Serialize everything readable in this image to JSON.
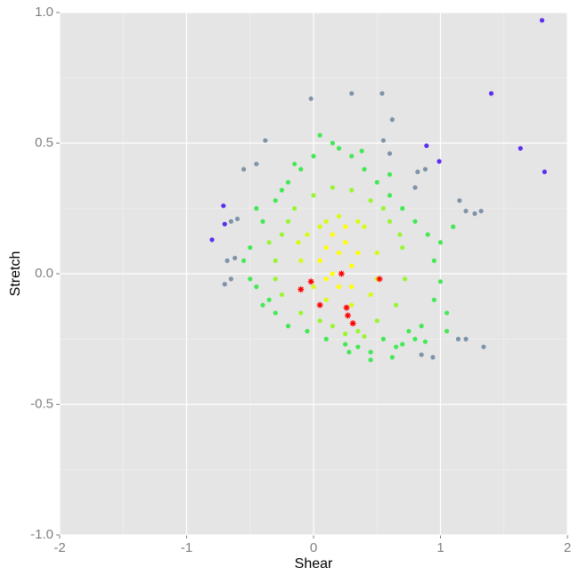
{
  "chart_data": {
    "type": "scatter",
    "x_label": "Shear",
    "y_label": "Stretch",
    "xlim": [
      -2,
      2
    ],
    "ylim": [
      -1,
      1
    ],
    "xticks": [
      -2,
      -1,
      0,
      1,
      2
    ],
    "yticks": [
      {
        "value": -1,
        "label": "-1.0"
      },
      {
        "value": -0.5,
        "label": "-0.5"
      },
      {
        "value": 0,
        "label": "0.0"
      },
      {
        "value": 0.5,
        "label": "0.5"
      },
      {
        "value": 1,
        "label": "1.0"
      }
    ],
    "grid": true,
    "minor_grid": true,
    "panel_color": "#e5e5e5",
    "series": [
      {
        "color": "#7f93a8",
        "marker": "dot",
        "x": [
          -0.02,
          0.3,
          0.54,
          0.62,
          -0.38,
          0.55,
          0.6,
          -0.55,
          -0.45,
          0.82,
          0.88,
          0.8,
          1.15,
          1.2,
          1.27,
          1.32,
          -0.6,
          -0.65,
          -0.68,
          -0.62,
          -0.65,
          -0.7,
          1.34,
          0.94,
          1.14,
          1.2,
          0.85
        ],
        "values": [
          0.67,
          0.69,
          0.69,
          0.59,
          0.51,
          0.51,
          0.46,
          0.4,
          0.42,
          0.39,
          0.4,
          0.33,
          0.28,
          0.24,
          0.23,
          0.24,
          0.21,
          0.2,
          0.05,
          0.06,
          -0.02,
          -0.04,
          -0.28,
          -0.32,
          -0.25,
          -0.25,
          -0.31
        ]
      },
      {
        "color": "#5b2ef0",
        "marker": "dot",
        "x": [
          1.8,
          1.4,
          1.63,
          1.82,
          -0.8,
          -0.71,
          0.89,
          0.99,
          -0.7
        ],
        "values": [
          0.97,
          0.69,
          0.48,
          0.39,
          0.13,
          0.26,
          0.49,
          0.43,
          0.19
        ]
      },
      {
        "color": "#44e855",
        "marker": "dot",
        "x": [
          -0.5,
          -0.45,
          -0.4,
          -0.35,
          -0.3,
          -0.3,
          -0.2,
          -0.2,
          -0.1,
          -0.05,
          0.0,
          0.05,
          0.1,
          0.2,
          0.25,
          0.3,
          0.35,
          0.4,
          0.45,
          0.5,
          0.55,
          0.6,
          0.65,
          0.7,
          0.75,
          0.8,
          0.85,
          0.9,
          0.95,
          0.95,
          1.0,
          1.05,
          1.0,
          0.45,
          -0.45,
          -0.5,
          -0.25,
          0.15,
          0.7,
          0.88,
          1.1,
          -0.4,
          0.28,
          0.6,
          -0.15,
          0.8,
          1.05,
          0.62,
          -0.55,
          0.38
        ],
        "values": [
          0.1,
          -0.05,
          0.2,
          -0.1,
          0.28,
          -0.15,
          0.35,
          -0.2,
          0.4,
          -0.22,
          0.45,
          0.53,
          -0.25,
          0.48,
          -0.27,
          0.45,
          -0.28,
          0.4,
          -0.3,
          0.35,
          -0.25,
          0.3,
          -0.28,
          0.25,
          -0.22,
          0.2,
          -0.2,
          0.15,
          0.05,
          -0.1,
          -0.03,
          -0.15,
          0.12,
          -0.33,
          0.25,
          -0.02,
          0.32,
          0.5,
          -0.27,
          -0.26,
          0.18,
          -0.12,
          -0.3,
          0.38,
          0.42,
          -0.25,
          -0.22,
          -0.32,
          0.05,
          0.47
        ]
      },
      {
        "color": "#99f533",
        "marker": "dot",
        "x": [
          -0.3,
          -0.25,
          -0.25,
          -0.15,
          -0.1,
          0.0,
          0.05,
          0.15,
          0.15,
          0.3,
          0.35,
          0.45,
          0.5,
          0.6,
          0.65,
          0.7,
          0.72,
          -0.35,
          0.55,
          0.4,
          -0.2,
          0.25,
          0.68,
          -0.3
        ],
        "values": [
          0.05,
          0.15,
          -0.08,
          0.25,
          -0.15,
          0.3,
          -0.18,
          0.33,
          -0.2,
          0.32,
          -0.22,
          0.28,
          -0.18,
          0.2,
          -0.12,
          0.1,
          -0.02,
          0.12,
          0.25,
          -0.24,
          0.2,
          -0.23,
          0.15,
          -0.02
        ]
      },
      {
        "color": "#d8fa14",
        "marker": "dot",
        "x": [
          -0.1,
          -0.05,
          0.0,
          0.1,
          0.1,
          0.2,
          0.3,
          0.4,
          0.45,
          0.5,
          -0.12,
          0.35,
          0.5,
          0.05
        ],
        "values": [
          0.05,
          0.15,
          -0.05,
          0.2,
          -0.1,
          0.22,
          -0.12,
          0.18,
          -0.08,
          0.08,
          0.12,
          0.2,
          -0.02,
          0.18
        ]
      },
      {
        "color": "#ffff00",
        "marker": "dot",
        "x": [
          0.05,
          0.1,
          0.15,
          0.2,
          0.25,
          0.3,
          0.15,
          0.2,
          0.35,
          0.1,
          0.25,
          0.3
        ],
        "values": [
          0.05,
          0.1,
          0.0,
          0.08,
          0.12,
          0.03,
          0.15,
          -0.05,
          0.08,
          -0.02,
          0.18,
          -0.05
        ]
      },
      {
        "color": "#ff0000",
        "marker": "star",
        "x": [
          0.22,
          0.52,
          -0.02,
          -0.1,
          0.05,
          0.26,
          0.27,
          0.31
        ],
        "values": [
          0.0,
          -0.02,
          -0.03,
          -0.06,
          -0.12,
          -0.13,
          -0.16,
          -0.19
        ]
      }
    ]
  }
}
